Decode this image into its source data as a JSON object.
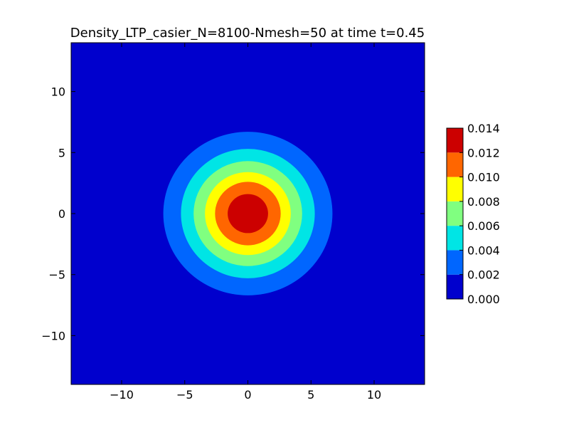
{
  "chart_data": {
    "type": "heatmap",
    "subtype": "filled-contour",
    "title": "Density_LTP_casier_N=8100-Nmesh=50 at time t=0.45",
    "xlabel": "",
    "ylabel": "",
    "xlim": [
      -14,
      14
    ],
    "ylim": [
      -14,
      14
    ],
    "x_ticks": [
      -10,
      -5,
      0,
      5,
      10
    ],
    "y_ticks": [
      -10,
      -5,
      0,
      5,
      10
    ],
    "x_tick_labels": [
      "−10",
      "−5",
      "0",
      "5",
      "10"
    ],
    "y_tick_labels": [
      "10",
      "5",
      "0",
      "−5",
      "−10"
    ],
    "grid": false,
    "center": [
      0,
      0
    ],
    "levels": [
      0.0,
      0.002,
      0.004,
      0.006,
      0.008,
      0.01,
      0.012,
      0.014
    ],
    "level_colors": [
      "#0000cd",
      "#0066ff",
      "#00e5e5",
      "#80ff80",
      "#ffff00",
      "#ff6600",
      "#cc0000"
    ],
    "contour_radii": [
      {
        "level": 0.002,
        "radius": 6.7
      },
      {
        "level": 0.004,
        "radius": 5.3
      },
      {
        "level": 0.006,
        "radius": 4.3
      },
      {
        "level": 0.008,
        "radius": 3.4
      },
      {
        "level": 0.01,
        "radius": 2.6
      },
      {
        "level": 0.012,
        "radius": 1.6
      }
    ],
    "colorbar": {
      "ticks": [
        0.0,
        0.002,
        0.004,
        0.006,
        0.008,
        0.01,
        0.012,
        0.014
      ],
      "tick_labels": [
        "0.000",
        "0.002",
        "0.004",
        "0.006",
        "0.008",
        "0.010",
        "0.012",
        "0.014"
      ],
      "placement": "right"
    }
  }
}
